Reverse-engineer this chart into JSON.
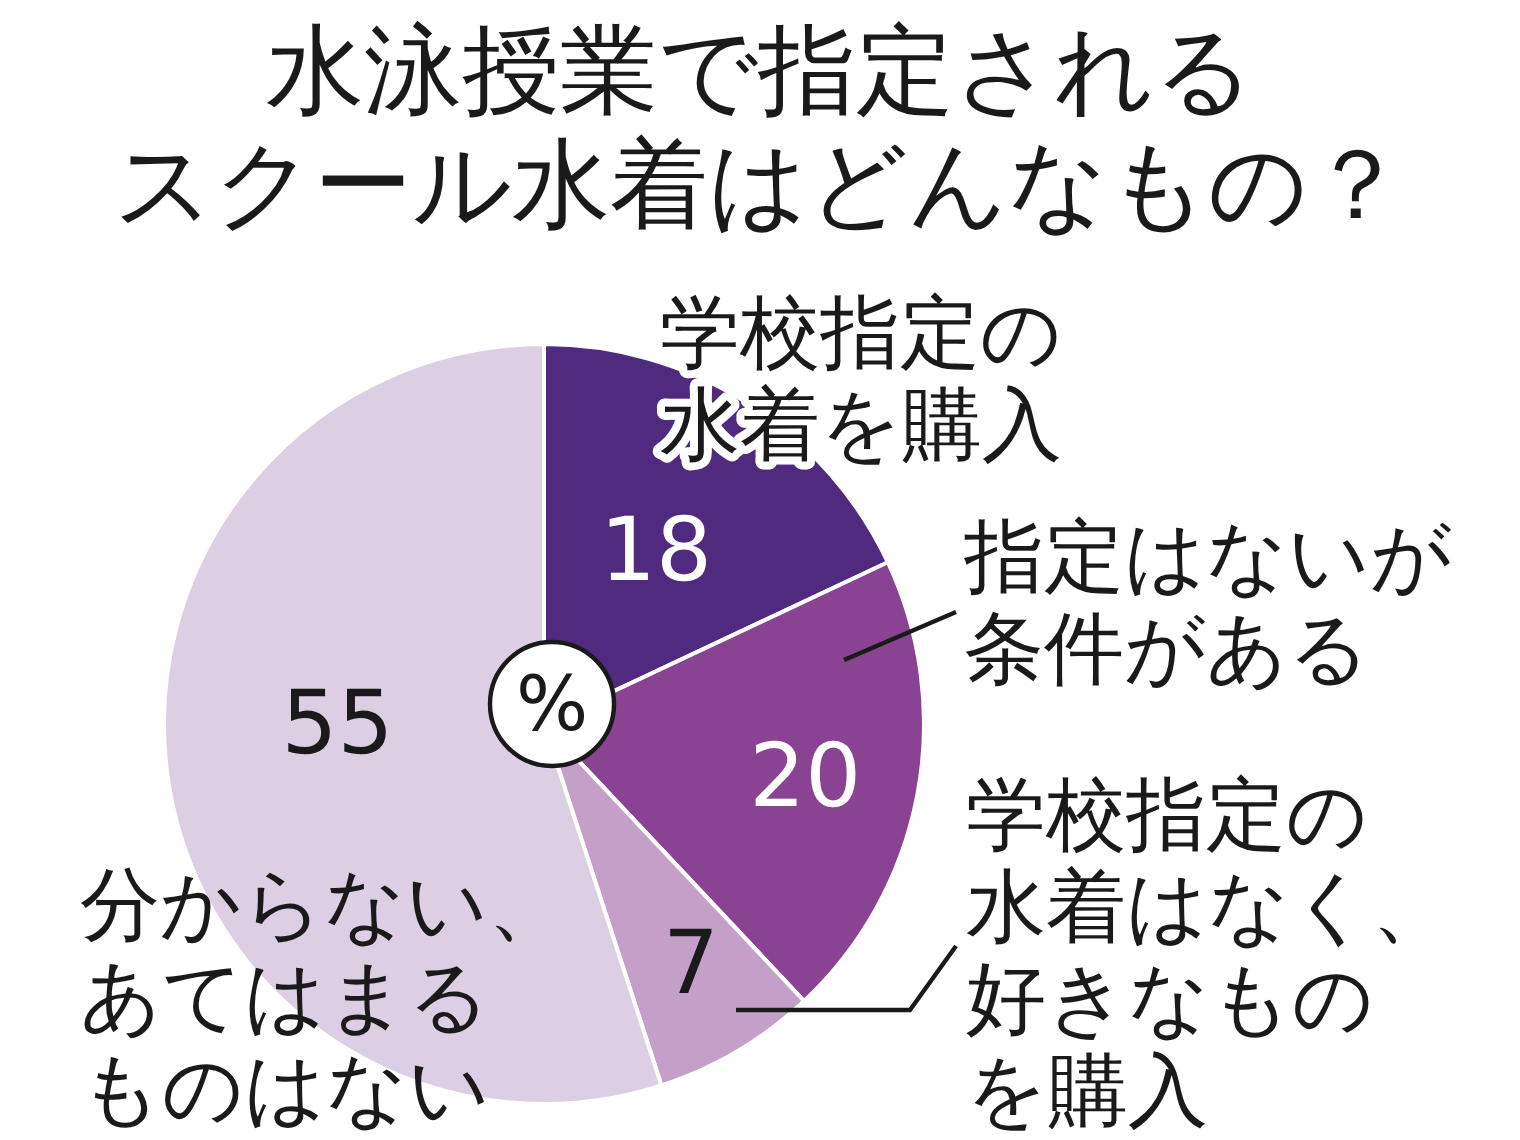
{
  "chart_data": {
    "type": "pie",
    "title": "水泳授業で指定されるスクール水着はどんなもの？",
    "categories": [
      "学校指定の水着を購入",
      "指定はないが条件がある",
      "学校指定の水着はなく、好きなものを購入",
      "分からない、あてはまるものはない"
    ],
    "values": [
      18,
      20,
      7,
      55
    ],
    "colors": [
      "#4f2a7f",
      "#8a4392",
      "#c4a0c9",
      "#dccfe4"
    ],
    "data_labels": true,
    "annotations": [
      "%"
    ]
  }
}
